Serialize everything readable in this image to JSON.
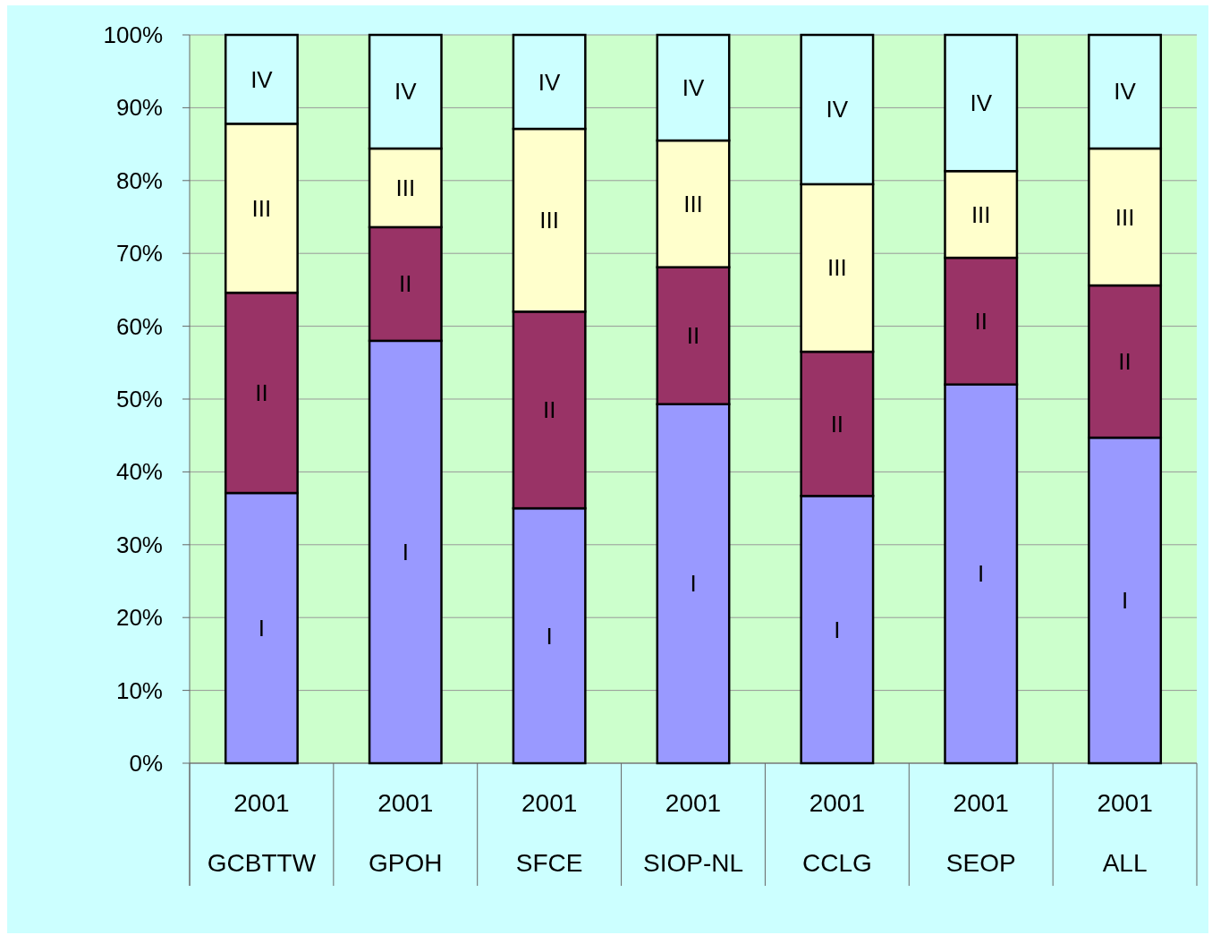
{
  "chart_data": {
    "type": "bar",
    "stacked": true,
    "categories": [
      "2001 GCBTTW",
      "2001 GPOH",
      "2001 SFCE",
      "2001 SIOP-NL",
      "2001 CCLG",
      "2001 SEOP",
      "2001 ALL"
    ],
    "series": [
      {
        "name": "I",
        "color": "#9999ff",
        "values": [
          37.1,
          58.0,
          35.0,
          49.3,
          36.7,
          52.0,
          44.7
        ]
      },
      {
        "name": "II",
        "color": "#993366",
        "values": [
          27.5,
          15.6,
          27.0,
          18.8,
          19.8,
          17.4,
          20.9
        ]
      },
      {
        "name": "III",
        "color": "#ffffcc",
        "values": [
          23.2,
          10.8,
          25.1,
          17.4,
          23.0,
          11.9,
          18.8
        ]
      },
      {
        "name": "IV",
        "color": "#ccffff",
        "values": [
          12.2,
          15.6,
          12.9,
          14.5,
          20.5,
          18.7,
          15.6
        ]
      }
    ],
    "ylim": [
      0,
      100
    ],
    "yticks": [
      {
        "value": 0,
        "label": "0%"
      },
      {
        "value": 10,
        "label": "10%"
      },
      {
        "value": 20,
        "label": "20%"
      },
      {
        "value": 30,
        "label": "30%"
      },
      {
        "value": 40,
        "label": "40%"
      },
      {
        "value": 50,
        "label": "50%"
      },
      {
        "value": 60,
        "label": "60%"
      },
      {
        "value": 70,
        "label": "70%"
      },
      {
        "value": 80,
        "label": "80%"
      },
      {
        "value": 90,
        "label": "90%"
      },
      {
        "value": 100,
        "label": "100%"
      }
    ],
    "grid": "y"
  }
}
